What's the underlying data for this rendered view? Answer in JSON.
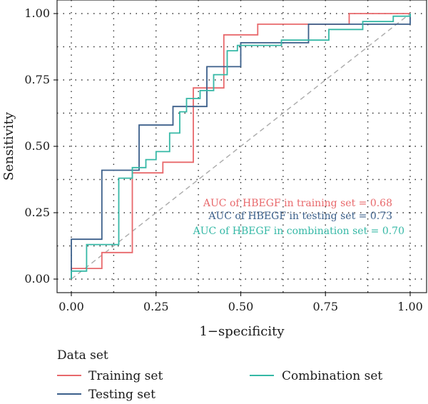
{
  "chart_data": {
    "type": "line",
    "subtype": "roc",
    "xlabel": "1−specificity",
    "ylabel": "Sensitivity",
    "xlim": [
      0,
      1
    ],
    "ylim": [
      0,
      1
    ],
    "x_ticks": [
      "0.00",
      "0.25",
      "0.50",
      "0.75",
      "1.00"
    ],
    "y_ticks": [
      "0.00",
      "0.25",
      "0.50",
      "0.75",
      "1.00"
    ],
    "grid": "dotted",
    "reference_line": {
      "from": [
        0,
        0
      ],
      "to": [
        1,
        1
      ],
      "color": "#aaaaaa",
      "style": "dashed"
    },
    "annotations": [
      {
        "text": "AUC of HBEGF in training set =  0.68",
        "series": "Training set"
      },
      {
        "text": "AUC of HBEGF in testing set =  0.73",
        "series": "Testing set"
      },
      {
        "text": "AUC of HBEGF in combination set =  0.70",
        "series": "Combination set"
      }
    ],
    "legend": {
      "title": "Data set",
      "placement": "bottom",
      "entries": [
        "Training set",
        "Testing set",
        "Combination set"
      ]
    },
    "series": [
      {
        "name": "Training set",
        "color": "#e8686b",
        "x": [
          0,
          0,
          0.09,
          0.09,
          0.18,
          0.18,
          0.27,
          0.27,
          0.36,
          0.36,
          0.45,
          0.45,
          0.5,
          0.5,
          0.55,
          0.55,
          0.72,
          0.72,
          0.82,
          0.82,
          1.0,
          1.0
        ],
        "y": [
          0,
          0.04,
          0.04,
          0.1,
          0.1,
          0.4,
          0.4,
          0.44,
          0.44,
          0.72,
          0.72,
          0.92,
          0.92,
          0.92,
          0.92,
          0.96,
          0.96,
          0.96,
          0.96,
          1.0,
          1.0,
          1.0
        ]
      },
      {
        "name": "Testing set",
        "color": "#3b5f8a",
        "x": [
          0,
          0,
          0.09,
          0.09,
          0.2,
          0.2,
          0.3,
          0.3,
          0.4,
          0.4,
          0.5,
          0.5,
          0.7,
          0.7,
          0.8,
          0.8,
          1.0,
          1.0
        ],
        "y": [
          0,
          0.15,
          0.15,
          0.41,
          0.41,
          0.58,
          0.58,
          0.65,
          0.65,
          0.8,
          0.8,
          0.89,
          0.89,
          0.96,
          0.96,
          0.96,
          0.96,
          1.0
        ]
      },
      {
        "name": "Combination set",
        "color": "#35b8a6",
        "x": [
          0,
          0,
          0.045,
          0.045,
          0.14,
          0.14,
          0.18,
          0.18,
          0.22,
          0.22,
          0.25,
          0.25,
          0.29,
          0.29,
          0.32,
          0.32,
          0.34,
          0.34,
          0.38,
          0.38,
          0.42,
          0.42,
          0.46,
          0.46,
          0.49,
          0.49,
          0.62,
          0.62,
          0.76,
          0.76,
          0.86,
          0.86,
          0.95,
          0.95,
          1.0,
          1.0
        ],
        "y": [
          0,
          0.03,
          0.03,
          0.13,
          0.13,
          0.38,
          0.38,
          0.42,
          0.42,
          0.45,
          0.45,
          0.48,
          0.48,
          0.55,
          0.55,
          0.63,
          0.63,
          0.68,
          0.68,
          0.71,
          0.71,
          0.77,
          0.77,
          0.86,
          0.86,
          0.88,
          0.88,
          0.9,
          0.9,
          0.94,
          0.94,
          0.97,
          0.97,
          0.99,
          0.99,
          1.0
        ]
      }
    ]
  }
}
